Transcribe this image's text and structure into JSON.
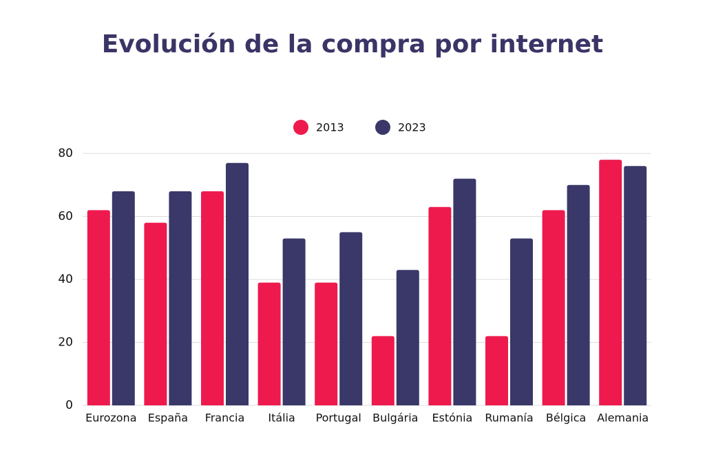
{
  "chart_data": {
    "type": "bar",
    "title": "Evolución de la compra por internet",
    "categories": [
      "Eurozona",
      "España",
      "Francia",
      "Itália",
      "Portugal",
      "Bulgária",
      "Estónia",
      "Rumanía",
      "Bélgica",
      "Alemania"
    ],
    "series": [
      {
        "name": "2013",
        "color": "#ee1a4d",
        "values": [
          62,
          58,
          68,
          39,
          39,
          22,
          63,
          22,
          62,
          78
        ]
      },
      {
        "name": "2023",
        "color": "#393868",
        "values": [
          68,
          68,
          77,
          53,
          55,
          43,
          72,
          53,
          70,
          76
        ]
      }
    ],
    "ylim": [
      0,
      80
    ],
    "yticks": [
      0,
      20,
      40,
      60,
      80
    ],
    "grid": true,
    "legend": "top"
  }
}
